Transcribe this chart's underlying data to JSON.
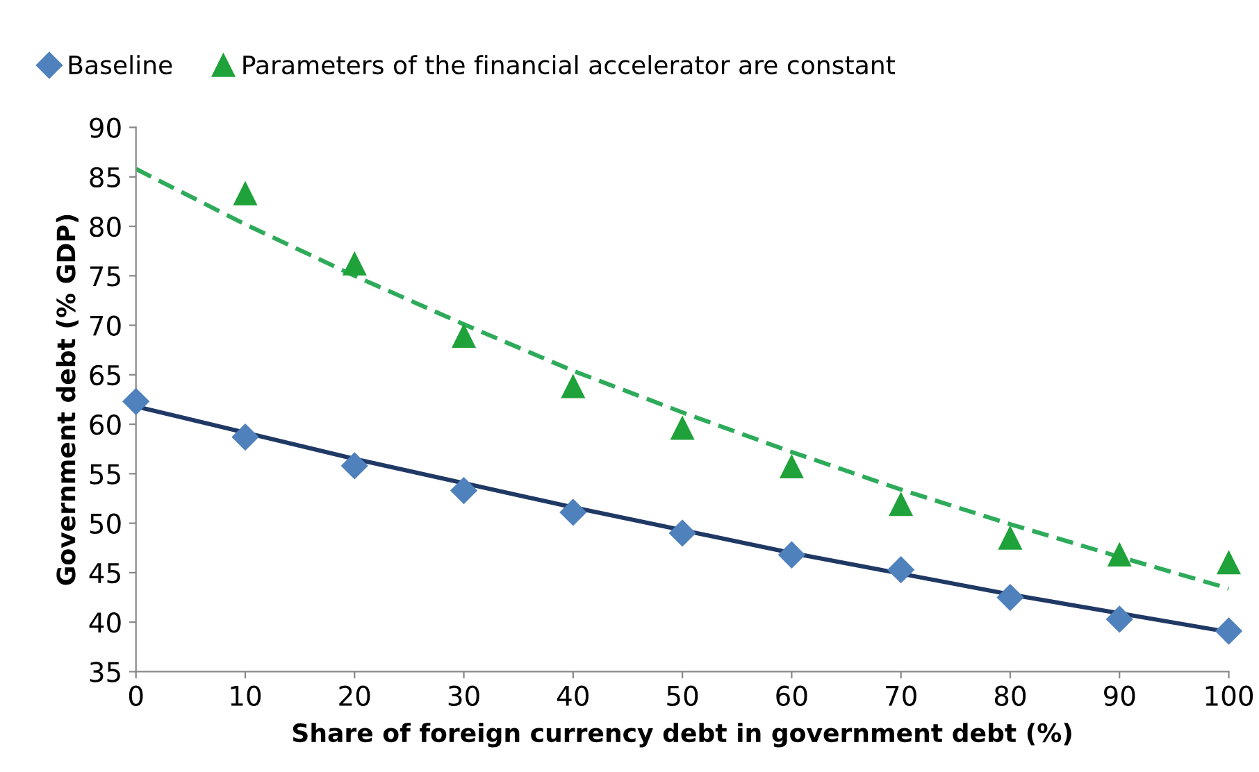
{
  "chart_data": {
    "type": "scatter",
    "xlabel": "Share of foreign currency debt in government debt (%)",
    "ylabel": "Government debt (% GDP)",
    "series": [
      {
        "name": "Baseline",
        "color": "#4f81bd",
        "marker": "diamond",
        "x": [
          0,
          10,
          20,
          30,
          40,
          50,
          60,
          70,
          80,
          90,
          100
        ],
        "values": [
          62.3,
          58.7,
          55.8,
          53.3,
          51.1,
          49.0,
          46.8,
          45.3,
          42.5,
          40.3,
          39.1
        ]
      },
      {
        "name": "Parameters of the financial accelerator are constant",
        "color": "#1fa23a",
        "marker": "triangle",
        "x": [
          10,
          20,
          30,
          40,
          50,
          60,
          70,
          80,
          90,
          100
        ],
        "values": [
          83.3,
          76.2,
          68.9,
          63.8,
          59.6,
          55.7,
          51.9,
          48.5,
          46.8,
          46.0
        ]
      },
      {
        "type": "line",
        "color": "#1f3864",
        "line_style": "solid",
        "marker": "none",
        "x": [
          0,
          20,
          40,
          60,
          80,
          100
        ],
        "values": [
          61.8,
          56.5,
          51.6,
          47.0,
          42.8,
          39.0
        ]
      },
      {
        "type": "line",
        "color": "#2eab5a",
        "line_style": "dashed",
        "marker": "none",
        "x": [
          0,
          10,
          20,
          30,
          40,
          50,
          60,
          70,
          80,
          90,
          100
        ],
        "values": [
          85.8,
          80.2,
          75.0,
          70.1,
          65.4,
          61.2,
          57.2,
          53.4,
          49.9,
          46.6,
          43.4
        ]
      }
    ],
    "xlim": [
      0,
      100
    ],
    "xticks": [
      0,
      10,
      20,
      30,
      40,
      50,
      60,
      70,
      80,
      90,
      100
    ],
    "ylim": [
      35,
      90
    ],
    "yticks": [
      35,
      40,
      45,
      50,
      55,
      60,
      65,
      70,
      75,
      80,
      85,
      90
    ],
    "grid": false,
    "legend": "top"
  }
}
